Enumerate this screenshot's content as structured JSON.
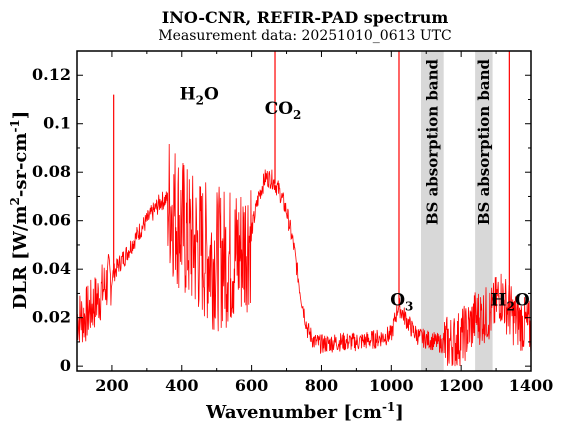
{
  "chart_data": {
    "type": "line",
    "title": "INO-CNR, REFIR-PAD spectrum",
    "subtitle": "Measurement data: 20251010_0613 UTC",
    "xlabel": {
      "base": "Wavenumber [cm",
      "sup": "-1",
      "close": "]"
    },
    "ylabel": {
      "p1": "DLR [W/m",
      "sup1": "2",
      "p2": "-sr-cm",
      "sup2": "-1",
      "p3": "]"
    },
    "xlim": [
      100,
      1400
    ],
    "ylim": [
      -0.002,
      0.13
    ],
    "xticks": [
      200,
      400,
      600,
      800,
      1000,
      1200,
      1400
    ],
    "yticks": [
      0,
      0.02,
      0.04,
      0.06,
      0.08,
      0.1,
      0.12
    ],
    "ytick_labels": [
      "0",
      "0.02",
      "0.04",
      "0.06",
      "0.08",
      "0.1",
      "0.12"
    ],
    "grid": false,
    "series": [
      {
        "color": "#ff0000",
        "x": [
          100,
          120,
          140,
          160,
          180,
          200,
          220,
          240,
          260,
          280,
          300,
          320,
          340,
          360,
          380,
          400,
          420,
          440,
          460,
          480,
          500,
          520,
          540,
          560,
          580,
          600,
          620,
          640,
          660,
          680,
          700,
          720,
          740,
          760,
          780,
          800,
          850,
          900,
          950,
          1000,
          1020,
          1040,
          1060,
          1080,
          1150,
          1180,
          1200,
          1220,
          1240,
          1290,
          1310,
          1330,
          1350,
          1370,
          1400
        ],
        "y": [
          0.02,
          0.02,
          0.024,
          0.028,
          0.033,
          0.037,
          0.042,
          0.046,
          0.051,
          0.056,
          0.06,
          0.064,
          0.068,
          0.069,
          0.064,
          0.058,
          0.052,
          0.05,
          0.048,
          0.046,
          0.044,
          0.045,
          0.045,
          0.046,
          0.05,
          0.056,
          0.07,
          0.078,
          0.077,
          0.072,
          0.064,
          0.05,
          0.03,
          0.015,
          0.01,
          0.009,
          0.01,
          0.01,
          0.011,
          0.013,
          0.025,
          0.02,
          0.015,
          0.012,
          0.009,
          0.01,
          0.012,
          0.015,
          0.02,
          0.022,
          0.03,
          0.025,
          0.02,
          0.018,
          0.015
        ]
      }
    ],
    "spikes": [
      {
        "x": 205,
        "y": 0.112
      },
      {
        "x": 667,
        "y": 0.13
      },
      {
        "x": 1022,
        "y": 0.13
      },
      {
        "x": 1338,
        "y": 0.13
      }
    ],
    "bands": [
      {
        "x0": 1085,
        "x1": 1150,
        "label": "BS absorption band"
      },
      {
        "x0": 1240,
        "x1": 1290,
        "label": "BS absorption band"
      }
    ],
    "annotations": [
      {
        "x": 450,
        "y": 0.11,
        "main": "H",
        "sub": "2",
        "tail": "O"
      },
      {
        "x": 690,
        "y": 0.104,
        "main": "CO",
        "sub": "2",
        "tail": ""
      },
      {
        "x": 1030,
        "y": 0.025,
        "main": "O",
        "sub": "3",
        "tail": ""
      },
      {
        "x": 1340,
        "y": 0.025,
        "main": "H",
        "sub": "2",
        "tail": "O"
      }
    ],
    "band_color": "#d8d8d8"
  }
}
